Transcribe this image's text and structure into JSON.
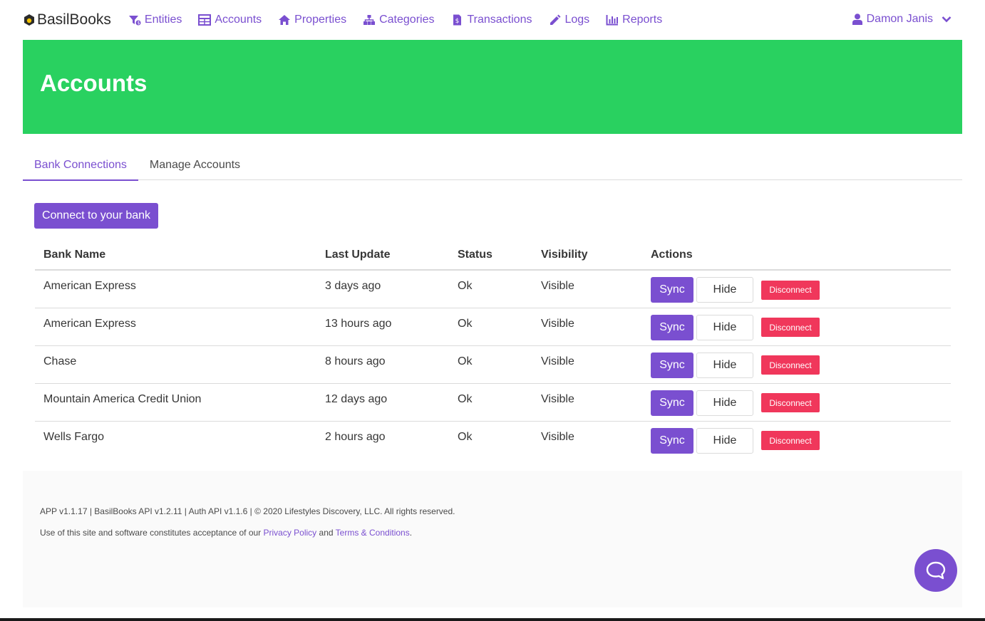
{
  "brand": {
    "name": "BasilBooks",
    "logo_icon": "basil-logo-icon"
  },
  "nav": {
    "items": [
      {
        "label": "Entities",
        "icon": "entities-icon"
      },
      {
        "label": "Accounts",
        "icon": "table-icon"
      },
      {
        "label": "Properties",
        "icon": "home-icon"
      },
      {
        "label": "Categories",
        "icon": "sitemap-icon"
      },
      {
        "label": "Transactions",
        "icon": "receipt-icon"
      },
      {
        "label": "Logs",
        "icon": "pencil-icon"
      },
      {
        "label": "Reports",
        "icon": "bar-chart-icon"
      }
    ],
    "user": "Damon Janis"
  },
  "hero": {
    "title": "Accounts"
  },
  "tabs": [
    {
      "label": "Bank Connections",
      "active": true
    },
    {
      "label": "Manage Accounts",
      "active": false
    }
  ],
  "connect_label": "Connect to your bank",
  "table": {
    "headers": [
      "Bank Name",
      "Last Update",
      "Status",
      "Visibility",
      "Actions"
    ],
    "rows": [
      {
        "bank": "American Express",
        "updated": "3 days ago",
        "status": "Ok",
        "visibility": "Visible"
      },
      {
        "bank": "American Express",
        "updated": "13 hours ago",
        "status": "Ok",
        "visibility": "Visible"
      },
      {
        "bank": "Chase",
        "updated": "8 hours ago",
        "status": "Ok",
        "visibility": "Visible"
      },
      {
        "bank": "Mountain America Credit Union",
        "updated": "12 days ago",
        "status": "Ok",
        "visibility": "Visible"
      },
      {
        "bank": "Wells Fargo",
        "updated": "2 hours ago",
        "status": "Ok",
        "visibility": "Visible"
      }
    ],
    "actions": {
      "sync": "Sync",
      "hide": "Hide",
      "disconnect": "Disconnect"
    }
  },
  "footer": {
    "version_line": "APP v1.1.17 | BasilBooks API v1.2.11 | Auth API v1.1.6 | © 2020 Lifestyles Discovery, LLC. All rights reserved.",
    "terms_prefix": "Use of this site and software constitutes acceptance of our ",
    "privacy_link": "Privacy Policy",
    "and_text": " and ",
    "terms_link": "Terms & Conditions",
    "period": "."
  },
  "colors": {
    "accent": "#7a4fd0",
    "hero": "#29d160",
    "danger": "#f0375b"
  }
}
